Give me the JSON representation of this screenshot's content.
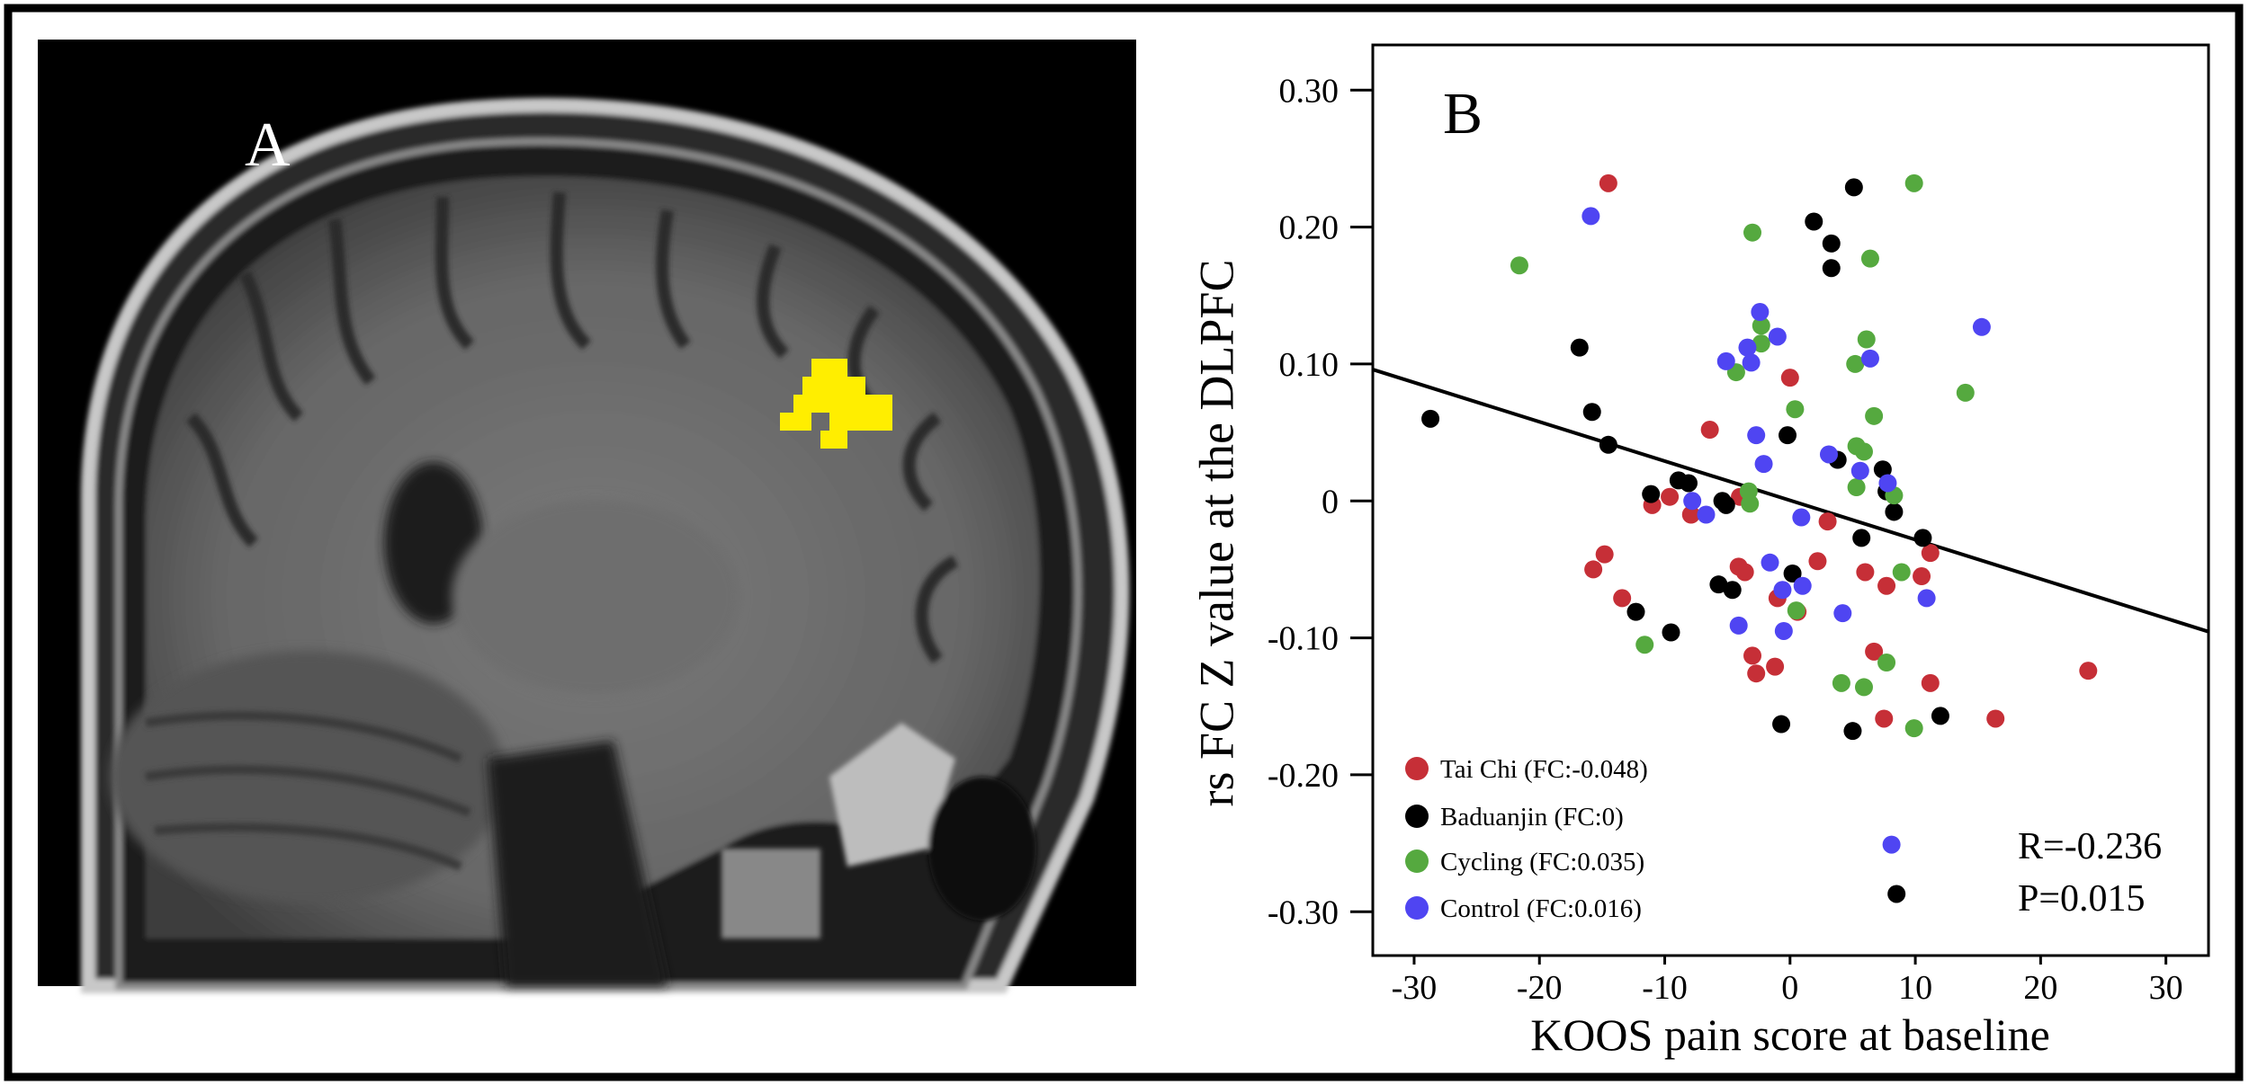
{
  "panel_a": {
    "label": "A",
    "cluster_color": "#ffee00"
  },
  "chart_data": {
    "type": "scatter",
    "panel_label": "B",
    "xlabel": "KOOS pain score at baseline",
    "ylabel": "rs FC Z value at the DLPFC",
    "xlim": [
      -33.3,
      33.4
    ],
    "ylim": [
      -0.332,
      0.333
    ],
    "x_ticks": [
      -30,
      -20,
      -10,
      0,
      10,
      20,
      30
    ],
    "x_tick_labels": [
      "-30",
      "-20",
      "-10",
      "0",
      "10",
      "20",
      "30"
    ],
    "y_ticks": [
      0.3,
      0.2,
      0.1,
      0,
      -0.1,
      -0.2,
      -0.3
    ],
    "y_tick_labels": [
      "0.30",
      "0.20",
      "0.10",
      "0",
      "-0.10",
      "-0.20",
      "-0.30"
    ],
    "grid": false,
    "legend_placement": "bottom-left",
    "fit_line": {
      "slope": -0.00287,
      "intercept": 0.0004,
      "x_range": [
        -33.3,
        33.4
      ],
      "color": "#000000"
    },
    "stats": {
      "r": "R=-0.236",
      "p": "P=0.015"
    },
    "series": [
      {
        "name": "Tai Chi (FC:-0.048)",
        "color": "#c62f37",
        "points": [
          [
            -14.5,
            0.232
          ],
          [
            0,
            0.09
          ],
          [
            -6.4,
            0.052
          ],
          [
            -9.6,
            0.003
          ],
          [
            -11,
            -0.003
          ],
          [
            -7.9,
            -0.01
          ],
          [
            -4,
            0.003
          ],
          [
            3.0,
            -0.015
          ],
          [
            -14.8,
            -0.039
          ],
          [
            -15.7,
            -0.05
          ],
          [
            -4.1,
            -0.048
          ],
          [
            -3.6,
            -0.052
          ],
          [
            2.2,
            -0.044
          ],
          [
            -13.4,
            -0.071
          ],
          [
            -1.0,
            -0.071
          ],
          [
            0.6,
            -0.081
          ],
          [
            6.0,
            -0.052
          ],
          [
            7.7,
            -0.062
          ],
          [
            10.5,
            -0.055
          ],
          [
            11.2,
            -0.038
          ],
          [
            -3.0,
            -0.113
          ],
          [
            -2.7,
            -0.126
          ],
          [
            -1.2,
            -0.121
          ],
          [
            6.7,
            -0.11
          ],
          [
            11.2,
            -0.133
          ],
          [
            7.5,
            -0.159
          ],
          [
            16.4,
            -0.159
          ],
          [
            23.8,
            -0.124
          ]
        ]
      },
      {
        "name": "Baduanjin (FC:0)",
        "color": "#000000",
        "points": [
          [
            -28.7,
            0.06
          ],
          [
            -16.8,
            0.112
          ],
          [
            -15.8,
            0.065
          ],
          [
            -14.5,
            0.041
          ],
          [
            -11.1,
            0.005
          ],
          [
            -8.9,
            0.015
          ],
          [
            -8.1,
            0.013
          ],
          [
            -5.4,
            0.0
          ],
          [
            -5.1,
            -0.003
          ],
          [
            -0.2,
            0.048
          ],
          [
            1.9,
            0.204
          ],
          [
            3.3,
            0.188
          ],
          [
            3.3,
            0.17
          ],
          [
            5.1,
            0.229
          ],
          [
            3.8,
            0.03
          ],
          [
            7.4,
            0.023
          ],
          [
            7.7,
            0.007
          ],
          [
            8.3,
            -0.008
          ],
          [
            5.7,
            -0.027
          ],
          [
            10.6,
            -0.027
          ],
          [
            0.2,
            -0.053
          ],
          [
            -5.7,
            -0.061
          ],
          [
            -4.6,
            -0.065
          ],
          [
            -12.3,
            -0.081
          ],
          [
            -9.5,
            -0.096
          ],
          [
            -0.7,
            -0.163
          ],
          [
            5.0,
            -0.168
          ],
          [
            12.0,
            -0.157
          ],
          [
            8.5,
            -0.287
          ]
        ]
      },
      {
        "name": "Cycling (FC:0.035)",
        "color": "#55a93f",
        "points": [
          [
            -21.6,
            0.172
          ],
          [
            -3.0,
            0.196
          ],
          [
            9.9,
            0.232
          ],
          [
            6.4,
            0.177
          ],
          [
            -2.3,
            0.128
          ],
          [
            -2.3,
            0.115
          ],
          [
            -4.3,
            0.094
          ],
          [
            6.1,
            0.118
          ],
          [
            5.2,
            0.1
          ],
          [
            14.0,
            0.079
          ],
          [
            0.4,
            0.067
          ],
          [
            6.7,
            0.062
          ],
          [
            5.3,
            0.04
          ],
          [
            5.9,
            0.036
          ],
          [
            -3.3,
            0.007
          ],
          [
            -3.2,
            -0.002
          ],
          [
            5.3,
            0.01
          ],
          [
            8.3,
            0.004
          ],
          [
            8.9,
            -0.052
          ],
          [
            0.5,
            -0.08
          ],
          [
            -11.6,
            -0.105
          ],
          [
            7.7,
            -0.118
          ],
          [
            4.1,
            -0.133
          ],
          [
            5.9,
            -0.136
          ],
          [
            9.9,
            -0.166
          ]
        ]
      },
      {
        "name": "Control (FC:0.016)",
        "color": "#4f45f2",
        "points": [
          [
            -15.9,
            0.208
          ],
          [
            -2.4,
            0.138
          ],
          [
            -3.4,
            0.112
          ],
          [
            -1.0,
            0.12
          ],
          [
            -5.1,
            0.102
          ],
          [
            -3.1,
            0.101
          ],
          [
            6.4,
            0.104
          ],
          [
            15.3,
            0.127
          ],
          [
            -2.7,
            0.048
          ],
          [
            -2.1,
            0.027
          ],
          [
            3.1,
            0.034
          ],
          [
            5.6,
            0.022
          ],
          [
            7.8,
            0.013
          ],
          [
            -7.8,
            0.0
          ],
          [
            -6.7,
            -0.01
          ],
          [
            0.9,
            -0.012
          ],
          [
            -1.6,
            -0.045
          ],
          [
            -0.6,
            -0.065
          ],
          [
            1.0,
            -0.062
          ],
          [
            -4.1,
            -0.091
          ],
          [
            -0.5,
            -0.095
          ],
          [
            4.2,
            -0.082
          ],
          [
            10.9,
            -0.071
          ],
          [
            8.1,
            -0.251
          ]
        ]
      }
    ]
  }
}
